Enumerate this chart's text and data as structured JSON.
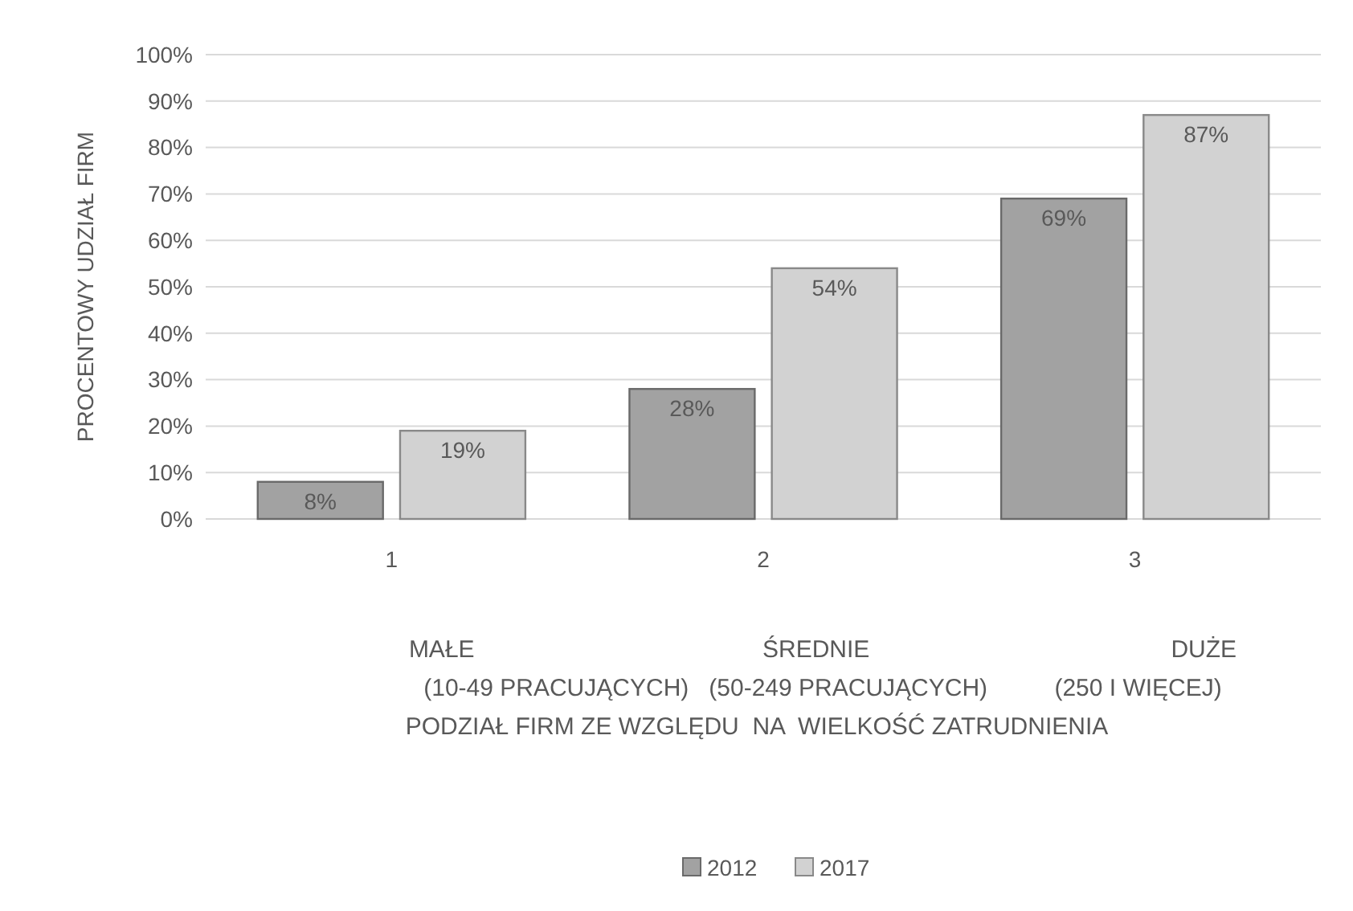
{
  "chart_data": {
    "type": "bar",
    "ylabel": "PROCENTOWY UDZIAŁ FIRM",
    "xlabel": "MAŁE                                           ŚREDNIE                                             DUŻE\n(10-49 PRACUJĄCYCH)   (50-249 PRACUJĄCYCH)          (250 I WIĘCEJ)\nPODZIAŁ FIRM ZE WZGLĘDU  NA  WIELKOŚĆ ZATRUDNIENIA",
    "categories": [
      "1",
      "2",
      "3"
    ],
    "series": [
      {
        "name": "2012",
        "color": "#a2a2a2",
        "values": [
          8,
          28,
          69
        ]
      },
      {
        "name": "2017",
        "color": "#d2d2d2",
        "values": [
          19,
          54,
          87
        ]
      }
    ],
    "ylim": [
      0,
      100
    ],
    "yticks": [
      {
        "value": 0,
        "label": "0%"
      },
      {
        "value": 10,
        "label": "10%"
      },
      {
        "value": 20,
        "label": "20%"
      },
      {
        "value": 30,
        "label": "30%"
      },
      {
        "value": 40,
        "label": "40%"
      },
      {
        "value": 50,
        "label": "50%"
      },
      {
        "value": 60,
        "label": "60%"
      },
      {
        "value": 70,
        "label": "70%"
      },
      {
        "value": 80,
        "label": "80%"
      },
      {
        "value": 90,
        "label": "90%"
      },
      {
        "value": 100,
        "label": "100%"
      }
    ],
    "value_labels": [
      [
        "8%",
        "28%",
        "69%"
      ],
      [
        "19%",
        "54%",
        "87%"
      ]
    ],
    "grid": "y",
    "legend": "bottom"
  }
}
